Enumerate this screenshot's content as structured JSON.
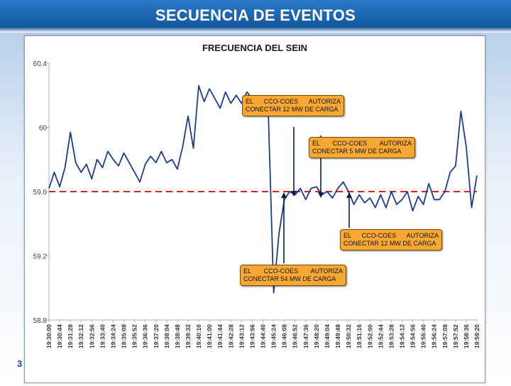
{
  "page": {
    "title": "SECUENCIA DE EVENTOS",
    "number": "3"
  },
  "chart_data": {
    "type": "line",
    "title": "FRECUENCIA DEL SEIN",
    "xlabel": "",
    "ylabel": "",
    "ylim": [
      58.8,
      60.4
    ],
    "yticks": [
      "60.4",
      "60",
      "59.6",
      "59.2",
      "58.8"
    ],
    "grid": false,
    "x_ticks": [
      "19:30:00",
      "19:30:44",
      "19:31:28",
      "19:32:12",
      "19:32:56",
      "19:33:40",
      "19:34:24",
      "19:35:08",
      "19:35:52",
      "19:36:36",
      "19:37:20",
      "19:38:04",
      "19:38:48",
      "19:39:32",
      "19:40:16",
      "19:41:00",
      "19:41:44",
      "19:42:28",
      "19:43:12",
      "19:43:56",
      "19:44:40",
      "19:45:24",
      "19:46:08",
      "19:46:52",
      "19:47:36",
      "19:48:20",
      "19:49:04",
      "19:49:48",
      "19:50:32",
      "19:51:16",
      "19:52:00",
      "19:52:44",
      "19:53:28",
      "19:54:12",
      "19:54:56",
      "19:55:40",
      "19:56:24",
      "19:57:08",
      "19:57:52",
      "19:58:36",
      "19:59:20"
    ],
    "reference_line": {
      "value": 59.6,
      "color": "#d9261c",
      "style": "dashed"
    },
    "series": [
      {
        "color": "#1f3a93",
        "x": [
          0,
          0.5,
          1,
          1.5,
          2,
          2.5,
          3,
          3.5,
          4,
          4.5,
          5,
          5.5,
          6,
          6.5,
          7,
          7.5,
          8,
          8.5,
          9,
          9.5,
          10,
          10.5,
          11,
          11.5,
          12,
          12.5,
          13,
          13.5,
          14,
          14.5,
          15,
          15.5,
          16,
          16.5,
          17,
          17.5,
          18,
          18.5,
          19,
          19.5,
          20,
          20.5,
          21,
          21.5,
          22,
          22.5,
          23,
          23.5,
          24,
          24.5,
          25,
          25.5,
          26,
          26.5,
          27,
          27.5,
          28,
          28.5,
          29,
          29.5,
          30,
          30.5,
          31,
          31.5,
          32,
          32.5,
          33,
          33.5,
          34,
          34.5,
          35,
          35.5,
          36,
          36.5,
          37,
          37.5,
          38,
          38.5,
          39,
          39.5,
          40
        ],
        "values": [
          59.62,
          59.72,
          59.63,
          59.75,
          59.97,
          59.78,
          59.72,
          59.77,
          59.68,
          59.8,
          59.75,
          59.85,
          59.8,
          59.76,
          59.84,
          59.78,
          59.72,
          59.66,
          59.77,
          59.82,
          59.78,
          59.85,
          59.78,
          59.8,
          59.74,
          59.88,
          60.07,
          59.87,
          60.26,
          60.16,
          60.24,
          60.18,
          60.12,
          60.22,
          60.15,
          60.2,
          60.15,
          60.22,
          60.18,
          60.17,
          60.08,
          60.1,
          58.97,
          59.34,
          59.55,
          59.6,
          59.58,
          59.62,
          59.55,
          59.62,
          59.63,
          59.58,
          59.6,
          59.56,
          59.62,
          59.66,
          59.6,
          59.52,
          59.58,
          59.53,
          59.56,
          59.5,
          59.58,
          59.5,
          59.6,
          59.52,
          59.55,
          59.6,
          59.48,
          59.57,
          59.52,
          59.65,
          59.55,
          59.55,
          59.6,
          59.72,
          59.76,
          60.1,
          59.88,
          59.5,
          59.7
        ]
      }
    ],
    "annotations": [
      {
        "text": "EL CCO-COES AUTORIZA CONECTAR 12 MW DE CARGA"
      },
      {
        "text": "EL CCO-COES AUTORIZA CONECTAR 5 MW DE CARGA"
      },
      {
        "text": "EL CCO-COES AUTORIZA CONECTAR 12 MW DE CARGA"
      },
      {
        "text": "EL CCO-COES AUTORIZA CONECTAR 54 MW DE CARGA"
      }
    ]
  }
}
